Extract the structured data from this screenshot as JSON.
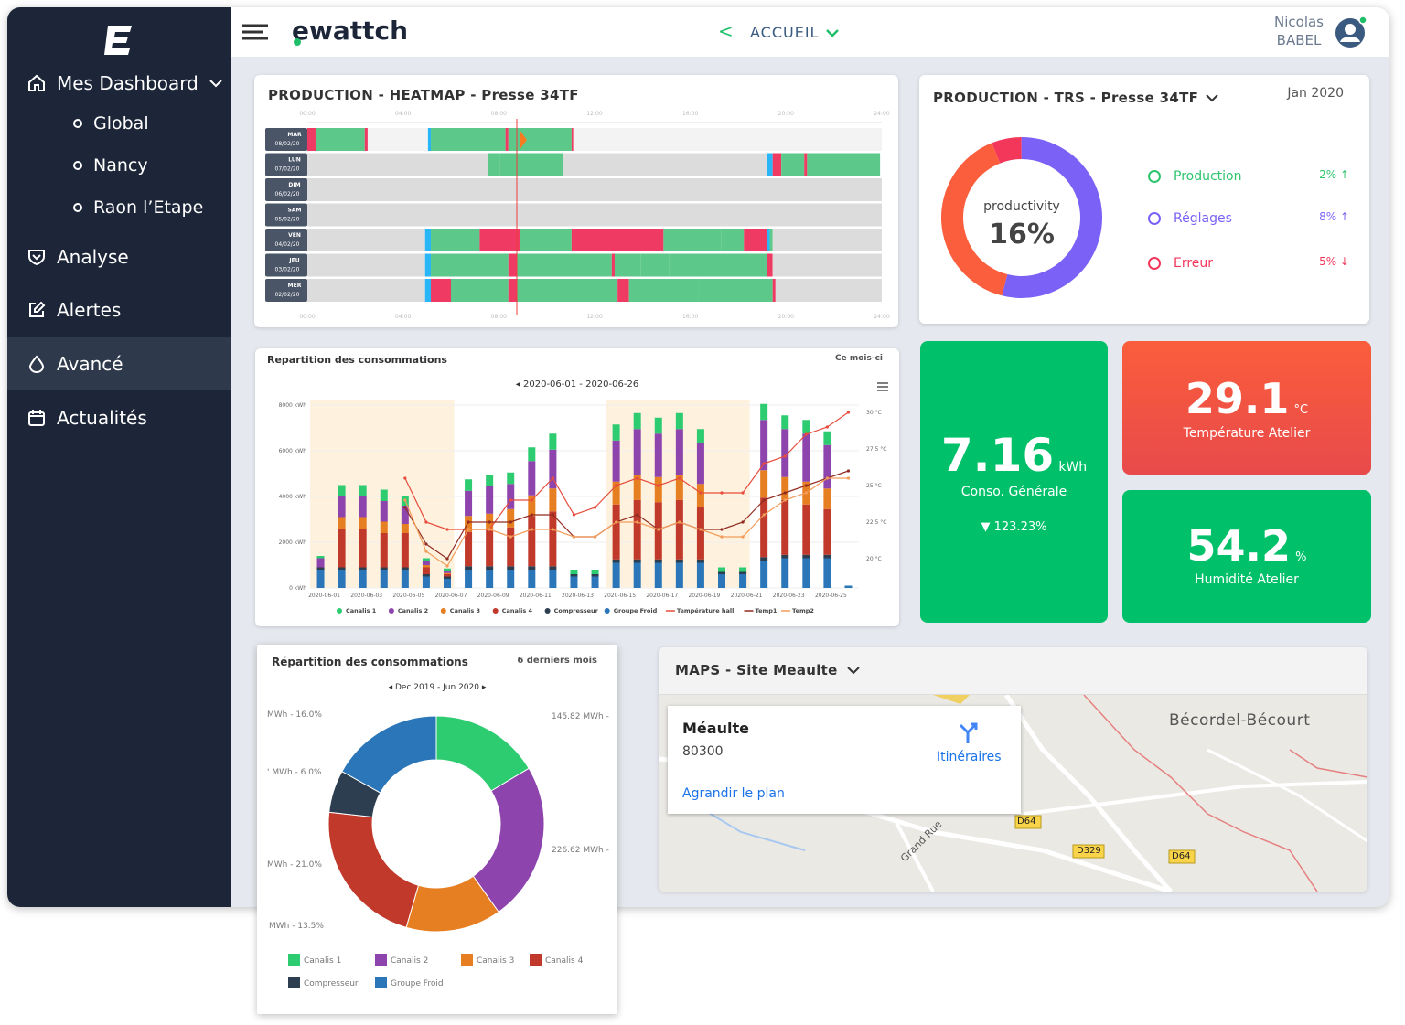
{
  "sidebar": {
    "items": [
      {
        "label": "Mes Dashboard"
      },
      {
        "label": "Analyse"
      },
      {
        "label": "Alertes"
      },
      {
        "label": "Avancé"
      },
      {
        "label": "Actualités"
      }
    ],
    "sub_items": [
      "Global",
      "Nancy",
      "Raon l’Etape"
    ]
  },
  "header": {
    "brand": "ewattch",
    "nav": "ACCUEIL",
    "user_first": "Nicolas",
    "user_last": "BABEL"
  },
  "heatmap": {
    "title": "PRODUCTION - HEATMAP - Presse 34TF",
    "hours": [
      "00:00",
      "04:00",
      "08:00",
      "12:00",
      "16:00",
      "20:00",
      "24:00"
    ],
    "rows": [
      {
        "day": "MAR",
        "date": "08/02/20"
      },
      {
        "day": "LUN",
        "date": "07/02/20"
      },
      {
        "day": "DIM",
        "date": "06/02/20"
      },
      {
        "day": "SAM",
        "date": "05/02/20"
      },
      {
        "day": "VEN",
        "date": "04/02/20"
      },
      {
        "day": "JEU",
        "date": "03/02/20"
      },
      {
        "day": "MER",
        "date": "02/02/20"
      }
    ]
  },
  "trs": {
    "title": "PRODUCTION - TRS - Presse 34TF",
    "period": "Jan 2020",
    "center_label": "productivity",
    "center_value": "16%",
    "legend": [
      {
        "label": "Production",
        "delta": "2%",
        "color": "#2ec46e"
      },
      {
        "label": "Réglages",
        "delta": "8%",
        "color": "#7b61f5"
      },
      {
        "label": "Erreur",
        "delta": "-5%",
        "color": "#f2375a"
      }
    ],
    "segments": [
      {
        "label": "Production",
        "value": 6,
        "color": "#f2375a"
      },
      {
        "label": "Réglages",
        "value": 54,
        "color": "#7b61f5"
      },
      {
        "label": "Erreur",
        "value": 40,
        "color": "#fb5e3d"
      }
    ]
  },
  "kpis": {
    "conso": {
      "value": "7.16",
      "unit": "kWh",
      "label": "Conso. Générale",
      "delta": "123.23%"
    },
    "temp": {
      "value": "29.1",
      "unit": "°C",
      "label": "Température Atelier"
    },
    "hum": {
      "value": "54.2",
      "unit": "%",
      "label": "Humidité Atelier"
    }
  },
  "conso_chart": {
    "title": "Repartition des consommations",
    "period_link": "Ce mois-ci",
    "range": "2020-06-01 - 2020-06-26"
  },
  "donut_card": {
    "title": "Répartition des consommations",
    "period_link": "6 derniers mois",
    "range": "Dec 2019 - Jun 2020",
    "labels": [
      "MWh - 16.0%",
      "' MWh - 6.0%",
      "MWh - 21.0%",
      "MWh - 13.5%",
      "145.82 MWh -",
      "226.62 MWh -"
    ]
  },
  "maps": {
    "title": "MAPS - Site Meaulte",
    "place": "Méaulte",
    "postcode": "80300",
    "directions": "Itinéraires",
    "enlarge": "Agrandir le plan",
    "town": "Bécordel-Bécourt",
    "road1": "D64",
    "road2": "D329",
    "road3": "D64",
    "street": "Grand Rue"
  },
  "chart_data": [
    {
      "type": "bar",
      "title": "Repartition des consommations",
      "categories": [
        "2020-06-01",
        "2020-06-02",
        "2020-06-03",
        "2020-06-04",
        "2020-06-05",
        "2020-06-06",
        "2020-06-07",
        "2020-06-08",
        "2020-06-09",
        "2020-06-10",
        "2020-06-11",
        "2020-06-12",
        "2020-06-13",
        "2020-06-14",
        "2020-06-15",
        "2020-06-16",
        "2020-06-17",
        "2020-06-18",
        "2020-06-19",
        "2020-06-20",
        "2020-06-21",
        "2020-06-22",
        "2020-06-23",
        "2020-06-24",
        "2020-06-25",
        "2020-06-26"
      ],
      "x_tick_labels": [
        "2020-06-01",
        "2020-06-03",
        "2020-06-05",
        "2020-06-07",
        "2020-06-09",
        "2020-06-11",
        "2020-06-13",
        "2020-06-15",
        "2020-06-17",
        "2020-06-19",
        "2020-06-21",
        "2020-06-23",
        "2020-06-25"
      ],
      "y_tick_labels": [
        "0 kWh",
        "2000 kWh",
        "4000 kWh",
        "6000 kWh",
        "8000 kWh"
      ],
      "y2_tick_labels": [
        "20 °C",
        "22.5 °C",
        "25 °C",
        "27.5 °C",
        "30 °C"
      ],
      "ylim": [
        0,
        8000
      ],
      "y2lim": [
        18,
        30.5
      ],
      "weekend_bands": [
        [
          0,
          6
        ],
        [
          14,
          20
        ]
      ],
      "series": [
        {
          "name": "Groupe Froid",
          "color": "#2a76b9",
          "values": [
            800,
            800,
            800,
            800,
            800,
            500,
            400,
            800,
            800,
            800,
            800,
            800,
            500,
            500,
            1100,
            1100,
            1100,
            1100,
            1100,
            600,
            600,
            1200,
            1300,
            1300,
            1300,
            100
          ]
        },
        {
          "name": "Compresseur",
          "color": "#2c3e50",
          "values": [
            100,
            100,
            100,
            100,
            100,
            100,
            100,
            150,
            150,
            150,
            150,
            150,
            100,
            100,
            150,
            150,
            150,
            150,
            150,
            100,
            100,
            150,
            150,
            150,
            150,
            0
          ]
        },
        {
          "name": "Canalis 4",
          "color": "#c0392b",
          "values": [
            0,
            1700,
            1700,
            1500,
            1500,
            300,
            100,
            1500,
            1600,
            1700,
            2200,
            2400,
            0,
            0,
            2400,
            2600,
            2500,
            2600,
            2300,
            0,
            0,
            2600,
            2400,
            2200,
            2000,
            0
          ]
        },
        {
          "name": "Canalis 3",
          "color": "#e67e22",
          "values": [
            0,
            500,
            500,
            500,
            400,
            100,
            50,
            700,
            700,
            800,
            900,
            1000,
            0,
            0,
            1000,
            1100,
            1100,
            1100,
            1000,
            0,
            0,
            1200,
            1000,
            1000,
            900,
            0
          ]
        },
        {
          "name": "Canalis 2",
          "color": "#8e44ad",
          "values": [
            400,
            900,
            900,
            900,
            800,
            200,
            100,
            1100,
            1200,
            1100,
            1500,
            1700,
            0,
            0,
            1800,
            2000,
            1900,
            2000,
            1800,
            0,
            0,
            2200,
            2100,
            2100,
            1900,
            0
          ]
        },
        {
          "name": "Canalis 1",
          "color": "#2ecc71",
          "values": [
            100,
            500,
            500,
            500,
            400,
            100,
            100,
            500,
            500,
            500,
            600,
            700,
            200,
            200,
            700,
            700,
            700,
            700,
            600,
            200,
            200,
            700,
            600,
            600,
            600,
            0
          ]
        }
      ],
      "lines": [
        {
          "name": "Température hall",
          "color": "#e74c3c",
          "values": [
            null,
            null,
            null,
            null,
            25.5,
            22.5,
            22.0,
            22.0,
            22.0,
            24.0,
            24.0,
            25.5,
            23.0,
            23.5,
            25.0,
            25.5,
            25.0,
            25.5,
            24.5,
            24.5,
            24.5,
            26.5,
            27.0,
            28.5,
            29.0,
            30.0
          ]
        },
        {
          "name": "Temp1",
          "color": "#922b21",
          "values": [
            null,
            null,
            null,
            null,
            23.5,
            21.0,
            20.0,
            22.5,
            22.5,
            22.5,
            23.0,
            23.0,
            21.5,
            21.5,
            22.5,
            23.0,
            22.0,
            22.5,
            22.0,
            22.0,
            22.5,
            24.0,
            24.5,
            25.0,
            25.5,
            26.0
          ]
        },
        {
          "name": "Temp2",
          "color": "#f39c5a",
          "values": [
            null,
            null,
            null,
            null,
            24.0,
            20.5,
            19.5,
            22.0,
            22.0,
            21.5,
            22.0,
            22.0,
            21.5,
            21.5,
            22.5,
            22.5,
            22.0,
            22.5,
            22.0,
            21.5,
            21.5,
            23.0,
            24.0,
            24.5,
            25.5,
            25.5
          ]
        }
      ]
    },
    {
      "type": "pie",
      "title": "Répartition des consommations",
      "labels": [
        "Canalis 1",
        "Canalis 2",
        "Canalis 3",
        "Canalis 4",
        "Compresseur",
        "Groupe Froid"
      ],
      "values": [
        15.5,
        22.5,
        13.5,
        21.0,
        6.0,
        16.0
      ],
      "colors": [
        "#2ecc71",
        "#8e44ad",
        "#e67e22",
        "#c0392b",
        "#2c3e50",
        "#2a76b9"
      ]
    }
  ]
}
